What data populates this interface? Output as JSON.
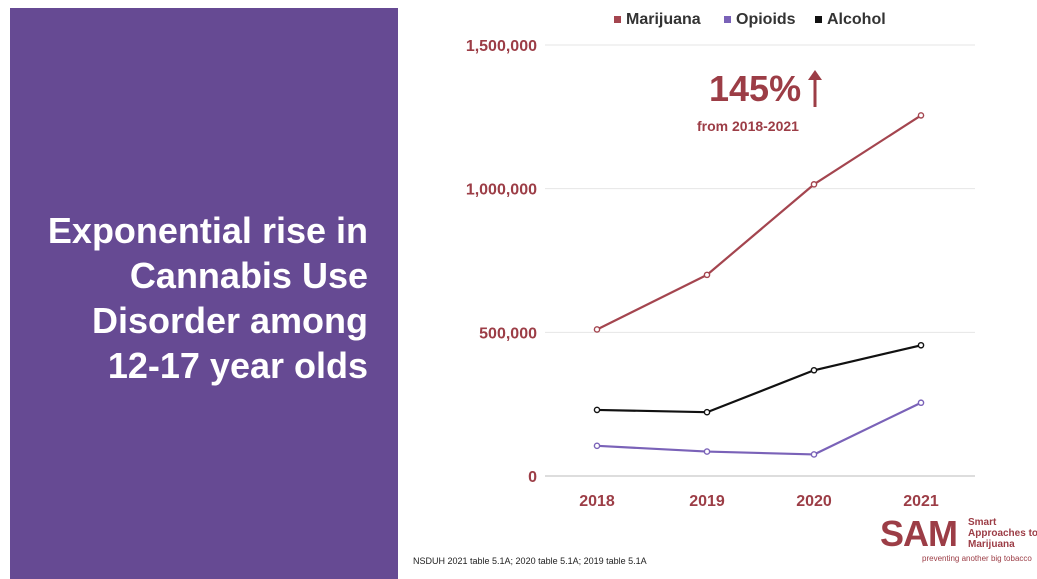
{
  "headline": {
    "lines": [
      "Exponential rise in",
      "Cannabis Use",
      "Disorder among",
      "12-17 year olds"
    ]
  },
  "callout": {
    "percent": "145%",
    "subtext": "from 2018-2021"
  },
  "source": "NSDUH 2021 table 5.1A; 2020 table 5.1A; 2019 table 5.1A",
  "logo": {
    "mark": "SAM",
    "lines": [
      "Smart",
      "Approaches to",
      "Marijuana"
    ],
    "tagline": "preventing another big tobacco"
  },
  "colors": {
    "panel": "#664a93",
    "accent": "#9c3d46",
    "marijuana": "#a4454f",
    "opioids": "#7a62b8",
    "alcohol": "#111111",
    "grid": "#e6e6e6"
  },
  "chart_data": {
    "type": "line",
    "x": [
      "2018",
      "2019",
      "2020",
      "2021"
    ],
    "series": [
      {
        "name": "Marijuana",
        "values": [
          510000,
          700000,
          1015000,
          1255000
        ]
      },
      {
        "name": "Opioids",
        "values": [
          105000,
          85000,
          75000,
          255000
        ]
      },
      {
        "name": "Alcohol",
        "values": [
          230000,
          222000,
          368000,
          455000
        ]
      }
    ],
    "ylim": [
      0,
      1500000
    ],
    "yticks": [
      0,
      500000,
      1000000,
      1500000
    ],
    "ytick_labels": [
      "0",
      "500,000",
      "1,000,000",
      "1,500,000"
    ],
    "grid": true,
    "legend_position": "top"
  }
}
